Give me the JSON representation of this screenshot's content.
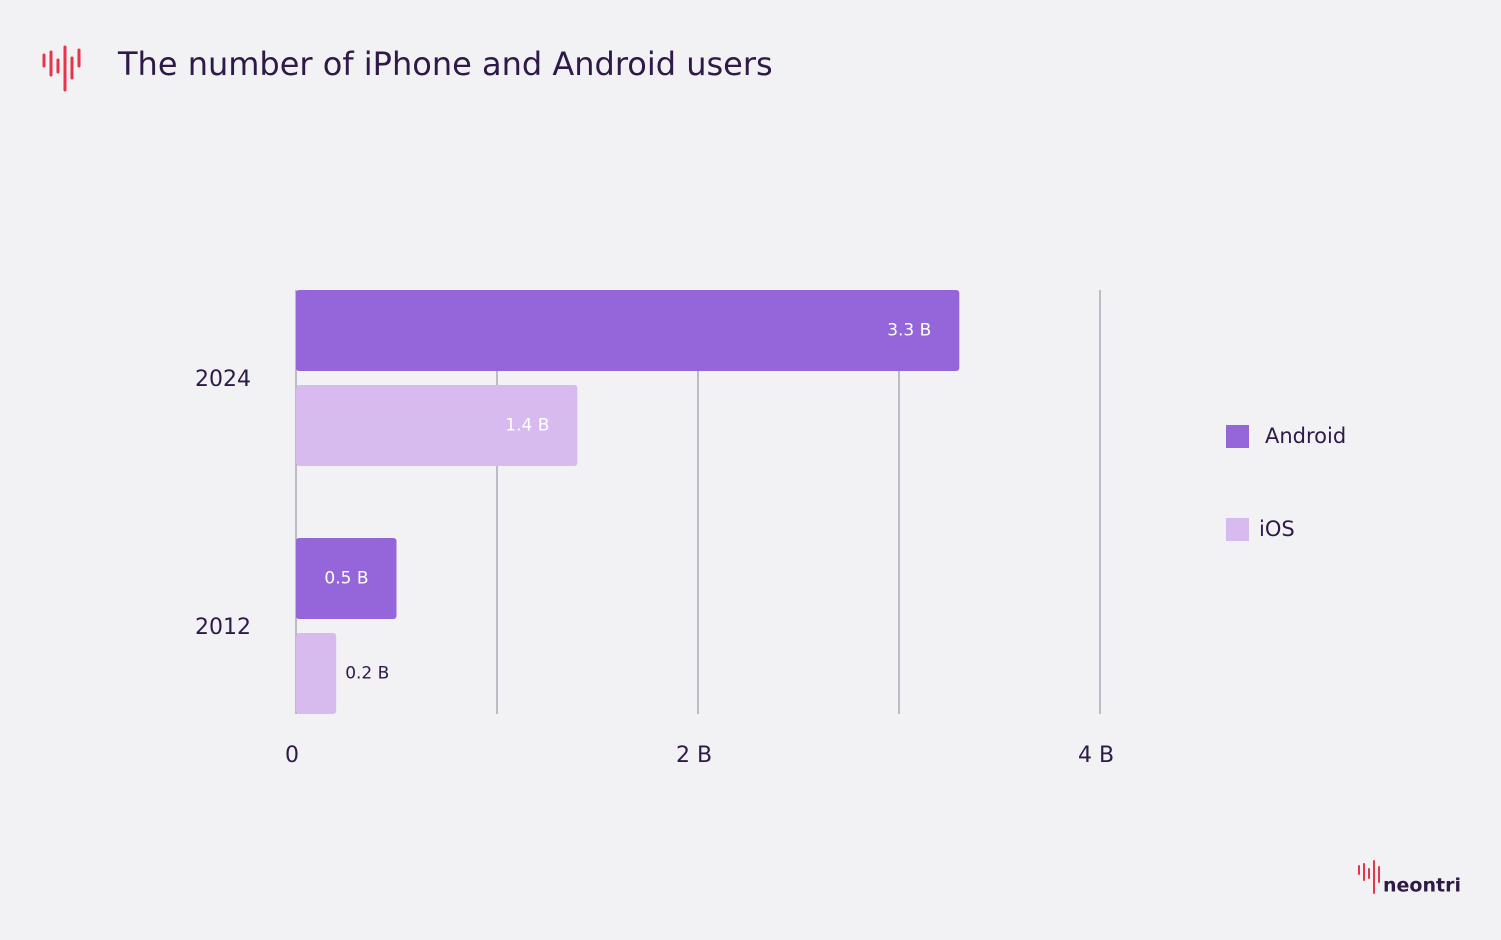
{
  "chart_data": {
    "type": "hbar",
    "title": "The number of iPhone and Android users",
    "brand": "neontri",
    "categories": [
      "2024",
      "2012"
    ],
    "series": [
      {
        "name": "Android",
        "color": "#9566d9",
        "values": [
          3.3,
          0.5
        ],
        "value_labels": [
          "3.3 B",
          "0.5 B"
        ]
      },
      {
        "name": "iOS",
        "color": "#d7bbef",
        "values": [
          1.4,
          0.2
        ],
        "value_labels": [
          "1.4 B",
          "0.2 B"
        ]
      }
    ],
    "xlim": [
      0,
      4
    ],
    "xticks": [
      0,
      {
        "value": 2,
        "label": "2 B"
      },
      {
        "value": 4,
        "label": "4 B"
      }
    ],
    "minor_xticks": [
      1,
      3
    ],
    "grid": true,
    "legend": "right"
  }
}
